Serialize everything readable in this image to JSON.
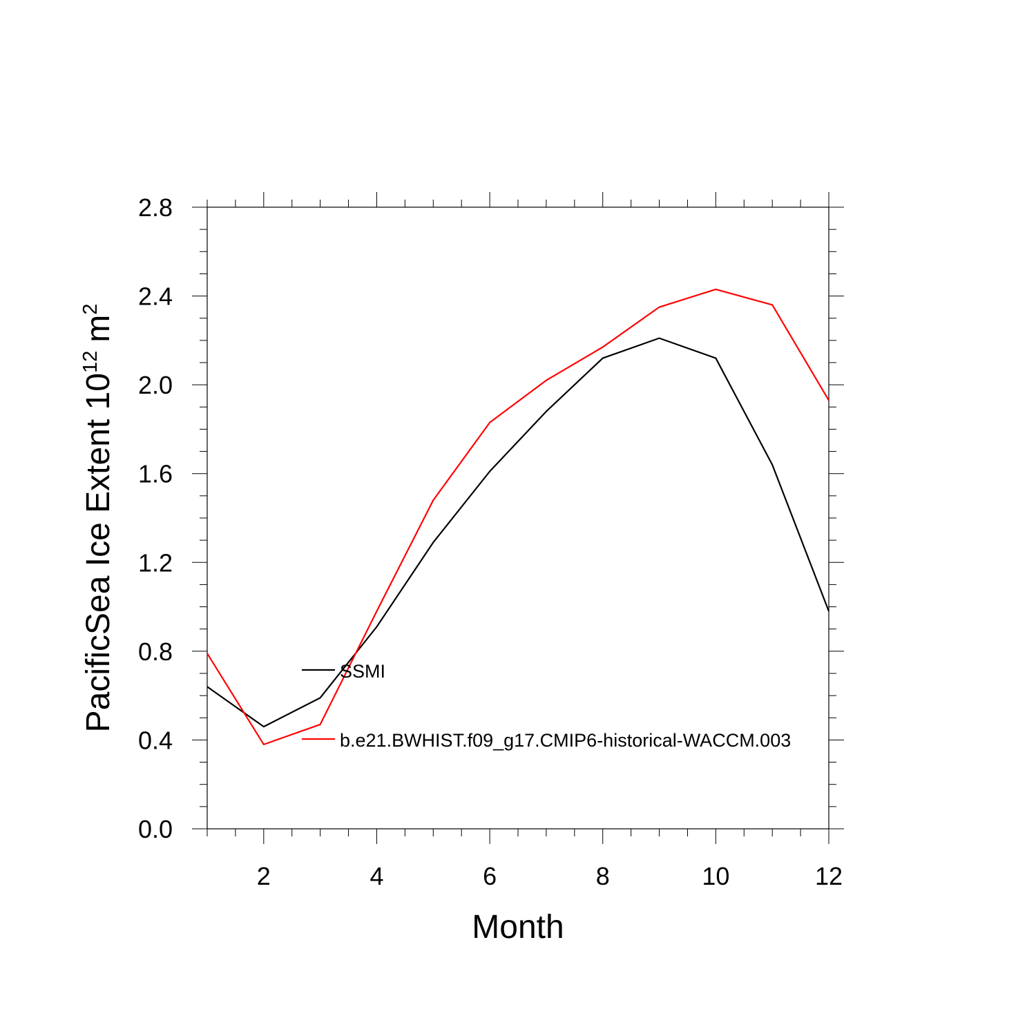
{
  "chart_data": {
    "type": "line",
    "title": "",
    "xlabel": "Month",
    "ylabel": "PacificSea Ice Extent 10",
    "ylabel_exponent": "12",
    "ylabel_unit": "m",
    "ylabel_unit_exponent": "2",
    "xlim": [
      1,
      12
    ],
    "ylim": [
      0,
      2.8
    ],
    "x_ticks": [
      2,
      4,
      6,
      8,
      10,
      12
    ],
    "x_tick_labels": [
      "2",
      "4",
      "6",
      "8",
      "10",
      "12"
    ],
    "y_ticks": [
      0,
      0.4,
      0.8,
      1.2,
      1.6,
      2.0,
      2.4,
      2.8
    ],
    "y_tick_labels": [
      "0.0",
      "0.4",
      "0.8",
      "1.2",
      "1.6",
      "2.0",
      "2.4",
      "2.8"
    ],
    "x": [
      1,
      2,
      3,
      4,
      5,
      6,
      7,
      8,
      9,
      10,
      11,
      12
    ],
    "series": [
      {
        "name": "SSMI",
        "color": "#000000",
        "values": [
          0.64,
          0.46,
          0.59,
          0.91,
          1.29,
          1.61,
          1.88,
          2.12,
          2.21,
          2.12,
          1.64,
          0.98
        ]
      },
      {
        "name": "b.e21.BWHIST.f09_g17.CMIP6-historical-WACCM.003",
        "color": "#ff0000",
        "values": [
          0.79,
          0.38,
          0.47,
          0.98,
          1.48,
          1.83,
          2.02,
          2.17,
          2.35,
          2.43,
          2.36,
          1.93
        ]
      }
    ],
    "legend_placement": "center-left inside plot",
    "grid": false
  }
}
